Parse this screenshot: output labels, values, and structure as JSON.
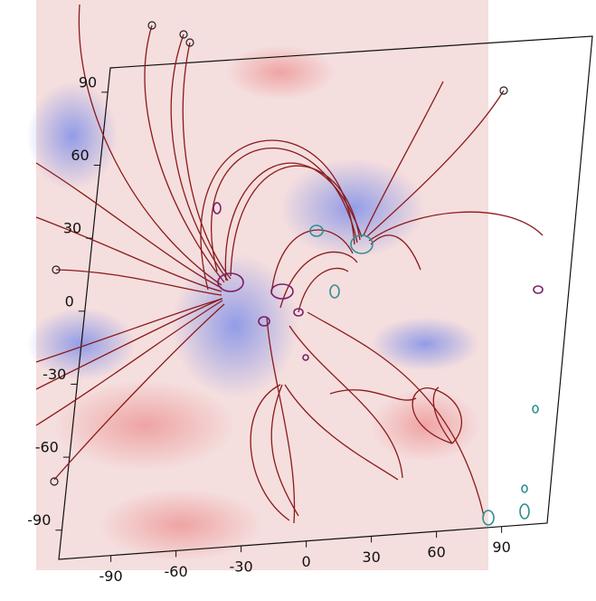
{
  "chart_data": {
    "type": "magnetogram",
    "xlim": [
      -114,
      111
    ],
    "xticks": [
      -90,
      -60,
      -30,
      0,
      30,
      60,
      90
    ],
    "ylim": [
      -102,
      100
    ],
    "yticks": [
      -90,
      -60,
      -30,
      0,
      30,
      60,
      90
    ]
  }
}
